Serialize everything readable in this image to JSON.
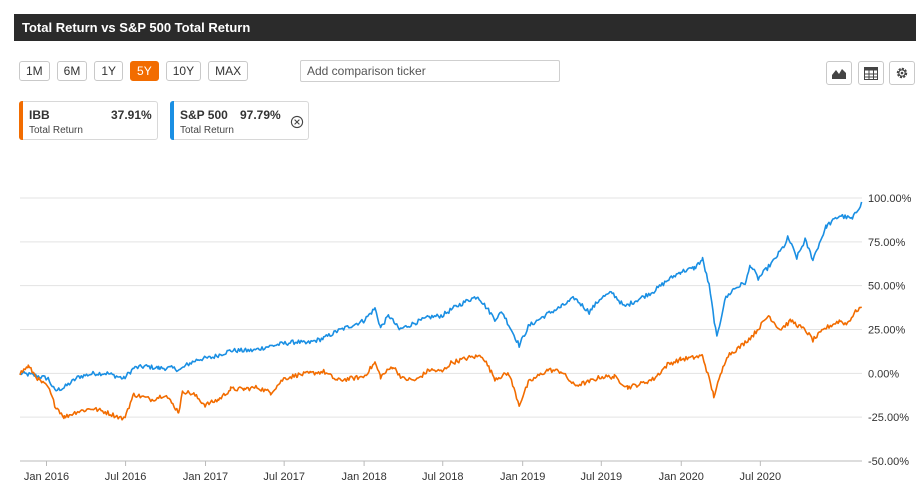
{
  "title": "Total Return vs S&P 500 Total Return",
  "range_buttons": [
    {
      "label": "1M",
      "active": false
    },
    {
      "label": "6M",
      "active": false
    },
    {
      "label": "1Y",
      "active": false
    },
    {
      "label": "5Y",
      "active": true
    },
    {
      "label": "10Y",
      "active": false
    },
    {
      "label": "MAX",
      "active": false
    }
  ],
  "comparison_input": {
    "placeholder": "Add comparison ticker",
    "value": ""
  },
  "toolbar": {
    "icons": [
      "area-chart-icon",
      "table-icon",
      "gear-icon"
    ]
  },
  "legend": [
    {
      "symbol": "IBB",
      "value": "37.91%",
      "sublabel": "Total Return",
      "color": "#f26c00"
    },
    {
      "symbol": "S&P 500",
      "value": "97.79%",
      "sublabel": "Total Return",
      "color": "#1a8fe3"
    }
  ],
  "chart_data": {
    "type": "line",
    "x_ticks": [
      "Jan 2016",
      "Jul 2016",
      "Jan 2017",
      "Jul 2017",
      "Jan 2018",
      "Jul 2018",
      "Jan 2019",
      "Jul 2019",
      "Jan 2020",
      "Jul 2020"
    ],
    "y_ticks": [
      "100.00%",
      "75.00%",
      "50.00%",
      "25.00%",
      "0.00%",
      "-25.00%",
      "-50.00%"
    ],
    "ylim": [
      -50,
      100
    ],
    "xlim": [
      "2015-11-01",
      "2021-02-20"
    ],
    "grid": true,
    "series": [
      {
        "name": "S&P 500",
        "color": "#1a8fe3",
        "points": [
          [
            "2015-11-01",
            0
          ],
          [
            "2015-12-01",
            -1
          ],
          [
            "2016-01-05",
            -3
          ],
          [
            "2016-01-20",
            -10
          ],
          [
            "2016-02-11",
            -8
          ],
          [
            "2016-03-15",
            -2
          ],
          [
            "2016-04-20",
            0
          ],
          [
            "2016-05-20",
            0
          ],
          [
            "2016-06-27",
            -3
          ],
          [
            "2016-07-20",
            3
          ],
          [
            "2016-08-15",
            4
          ],
          [
            "2016-09-15",
            3
          ],
          [
            "2016-10-15",
            3
          ],
          [
            "2016-11-04",
            2
          ],
          [
            "2016-11-20",
            5
          ],
          [
            "2016-12-15",
            8
          ],
          [
            "2017-01-15",
            9
          ],
          [
            "2017-02-28",
            13
          ],
          [
            "2017-03-31",
            13
          ],
          [
            "2017-04-20",
            13
          ],
          [
            "2017-05-20",
            15
          ],
          [
            "2017-06-30",
            17
          ],
          [
            "2017-07-31",
            18
          ],
          [
            "2017-08-20",
            17
          ],
          [
            "2017-09-30",
            20
          ],
          [
            "2017-10-31",
            24
          ],
          [
            "2017-11-30",
            27
          ],
          [
            "2017-12-31",
            30
          ],
          [
            "2018-01-26",
            37
          ],
          [
            "2018-02-08",
            26
          ],
          [
            "2018-02-27",
            33
          ],
          [
            "2018-03-23",
            25
          ],
          [
            "2018-04-30",
            29
          ],
          [
            "2018-05-31",
            32
          ],
          [
            "2018-06-30",
            33
          ],
          [
            "2018-07-31",
            38
          ],
          [
            "2018-08-31",
            42
          ],
          [
            "2018-09-20",
            44
          ],
          [
            "2018-10-29",
            31
          ],
          [
            "2018-11-15",
            35
          ],
          [
            "2018-12-24",
            16
          ],
          [
            "2019-01-15",
            27
          ],
          [
            "2019-02-28",
            34
          ],
          [
            "2019-03-31",
            38
          ],
          [
            "2019-04-30",
            43
          ],
          [
            "2019-06-03",
            35
          ],
          [
            "2019-06-30",
            43
          ],
          [
            "2019-07-26",
            46
          ],
          [
            "2019-08-23",
            38
          ],
          [
            "2019-09-30",
            43
          ],
          [
            "2019-10-31",
            47
          ],
          [
            "2019-11-30",
            53
          ],
          [
            "2019-12-31",
            58
          ],
          [
            "2020-01-31",
            60
          ],
          [
            "2020-02-19",
            65
          ],
          [
            "2020-03-05",
            50
          ],
          [
            "2020-03-23",
            20
          ],
          [
            "2020-04-10",
            42
          ],
          [
            "2020-04-30",
            48
          ],
          [
            "2020-05-29",
            52
          ],
          [
            "2020-06-08",
            62
          ],
          [
            "2020-06-26",
            54
          ],
          [
            "2020-07-31",
            64
          ],
          [
            "2020-08-31",
            75
          ],
          [
            "2020-09-02",
            78
          ],
          [
            "2020-09-23",
            66
          ],
          [
            "2020-10-12",
            76
          ],
          [
            "2020-10-30",
            65
          ],
          [
            "2020-11-30",
            84
          ],
          [
            "2020-12-31",
            90
          ],
          [
            "2021-01-29",
            88
          ],
          [
            "2021-02-16",
            96
          ],
          [
            "2021-02-19",
            97.79
          ]
        ]
      },
      {
        "name": "IBB",
        "color": "#f26c00",
        "points": [
          [
            "2015-11-01",
            0
          ],
          [
            "2015-11-20",
            4
          ],
          [
            "2015-12-15",
            -4
          ],
          [
            "2016-01-05",
            -8
          ],
          [
            "2016-01-20",
            -18
          ],
          [
            "2016-02-11",
            -25
          ],
          [
            "2016-03-10",
            -22
          ],
          [
            "2016-04-15",
            -20
          ],
          [
            "2016-05-15",
            -22
          ],
          [
            "2016-06-27",
            -26
          ],
          [
            "2016-07-20",
            -12
          ],
          [
            "2016-08-31",
            -15
          ],
          [
            "2016-09-30",
            -12
          ],
          [
            "2016-10-31",
            -22
          ],
          [
            "2016-11-10",
            -10
          ],
          [
            "2016-12-05",
            -12
          ],
          [
            "2016-12-31",
            -18
          ],
          [
            "2017-01-31",
            -15
          ],
          [
            "2017-02-28",
            -9
          ],
          [
            "2017-03-31",
            -9
          ],
          [
            "2017-04-30",
            -8
          ],
          [
            "2017-05-31",
            -11
          ],
          [
            "2017-06-30",
            -3
          ],
          [
            "2017-07-31",
            -1
          ],
          [
            "2017-08-31",
            0
          ],
          [
            "2017-09-30",
            1
          ],
          [
            "2017-10-31",
            -4
          ],
          [
            "2017-11-30",
            -3
          ],
          [
            "2017-12-31",
            -2
          ],
          [
            "2018-01-26",
            6
          ],
          [
            "2018-02-08",
            -2
          ],
          [
            "2018-03-08",
            4
          ],
          [
            "2018-03-31",
            -3
          ],
          [
            "2018-04-30",
            -4
          ],
          [
            "2018-05-31",
            2
          ],
          [
            "2018-06-30",
            1
          ],
          [
            "2018-07-20",
            6
          ],
          [
            "2018-08-31",
            9
          ],
          [
            "2018-09-30",
            10
          ],
          [
            "2018-10-29",
            -3
          ],
          [
            "2018-11-30",
            0
          ],
          [
            "2018-12-24",
            -18
          ],
          [
            "2019-01-15",
            -5
          ],
          [
            "2019-02-28",
            2
          ],
          [
            "2019-03-31",
            1
          ],
          [
            "2019-04-30",
            -7
          ],
          [
            "2019-05-31",
            -5
          ],
          [
            "2019-06-30",
            -2
          ],
          [
            "2019-07-31",
            -2
          ],
          [
            "2019-08-31",
            -8
          ],
          [
            "2019-09-30",
            -6
          ],
          [
            "2019-10-31",
            -3
          ],
          [
            "2019-11-30",
            5
          ],
          [
            "2019-12-31",
            8
          ],
          [
            "2020-01-31",
            9
          ],
          [
            "2020-02-19",
            10
          ],
          [
            "2020-03-16",
            -13
          ],
          [
            "2020-04-15",
            10
          ],
          [
            "2020-05-15",
            15
          ],
          [
            "2020-06-15",
            22
          ],
          [
            "2020-07-20",
            33
          ],
          [
            "2020-08-15",
            25
          ],
          [
            "2020-09-10",
            30
          ],
          [
            "2020-10-15",
            24
          ],
          [
            "2020-10-30",
            19
          ],
          [
            "2020-11-30",
            26
          ],
          [
            "2020-12-31",
            30
          ],
          [
            "2021-01-15",
            28
          ],
          [
            "2021-02-08",
            36
          ],
          [
            "2021-02-19",
            37.91
          ]
        ]
      }
    ]
  }
}
